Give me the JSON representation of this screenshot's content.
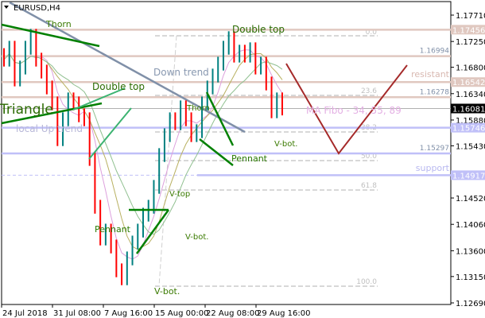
{
  "window": {
    "symbol_title": "EURUSD,H4",
    "menu_icon": "triangle-down-icon"
  },
  "colors": {
    "bull": "#008080",
    "bear": "#ff0000",
    "resistance": "#e0c8c0",
    "support": "#c0c0f8",
    "pattern": "#008000",
    "downtrend": "#8090a8",
    "forecast": "#a52a2a",
    "current_price_bg": "#000000"
  },
  "chart_data": {
    "type": "candlestick",
    "ylim": [
      1.1269,
      1.1771
    ],
    "y_ticks": [
      "1.17710",
      "1.17250",
      "1.16800",
      "1.16340",
      "1.15880",
      "1.15430",
      "1.14520",
      "1.14060",
      "1.13600",
      "1.13150",
      "1.12690"
    ],
    "x_ticks": [
      "24 Jul 2018",
      "31 Jul 08:00",
      "7 Aug 16:00",
      "15 Aug 00:00",
      "22 Aug 08:00",
      "29 Aug 16:00"
    ],
    "closes": [
      1.16933,
      1.17141,
      1.16587,
      1.16795,
      1.17141,
      1.17349,
      1.16933,
      1.16725,
      1.16448,
      1.1617,
      1.15546,
      1.15893,
      1.1624,
      1.1617,
      1.15962,
      1.15893,
      1.152,
      1.14367,
      1.13813,
      1.13951,
      1.13674,
      1.13258,
      1.13119,
      1.13466,
      1.13743,
      1.13951,
      1.14229,
      1.14367,
      1.14714,
      1.15269,
      1.15616,
      1.15893,
      1.15824,
      1.16101,
      1.15893,
      1.15616,
      1.15685,
      1.1617,
      1.16448,
      1.16656,
      1.16864,
      1.17141,
      1.17308,
      1.17003,
      1.17072,
      1.17003,
      1.17114,
      1.16795,
      1.16864,
      1.16517,
      1.16032,
      1.1624,
      1.16081
    ],
    "current_price": "1.16081",
    "levels": [
      {
        "price": "1.17456",
        "kind": "resistance",
        "highlighted": true
      },
      {
        "price": "1.16994",
        "kind": "resistance",
        "highlighted": false
      },
      {
        "price": "1.16542",
        "kind": "resistance",
        "highlighted": true
      },
      {
        "price": "1.16278",
        "kind": "resistance",
        "highlighted": false
      },
      {
        "price": "1.15746",
        "kind": "support",
        "highlighted": true
      },
      {
        "price": "1.15297",
        "kind": "support",
        "highlighted": false
      },
      {
        "price": "1.14917",
        "kind": "support",
        "highlighted": true
      }
    ],
    "fibo_levels": [
      "0.0",
      "23.6",
      "38.2",
      "50.0",
      "61.8",
      "100.0"
    ],
    "moving_averages_label": "MA Fibo - 34, 55, 89",
    "annotations": {
      "thorn_1": "Thorn",
      "thorn_2": "Thorn",
      "double_top_1": "Double top",
      "double_top_2": "Double top",
      "down_trend": "Down trend",
      "triangle": "Triangle",
      "local_up_trend": "local Up trend",
      "pennant_1": "Pennant",
      "pennant_2": "Pennant",
      "v_bot_1": "V-bot.",
      "v_bot_2": "V-bot.",
      "v_bot_3": "V-bot.",
      "v_top": "V-top",
      "resistant": "resistant",
      "support": "support"
    }
  }
}
